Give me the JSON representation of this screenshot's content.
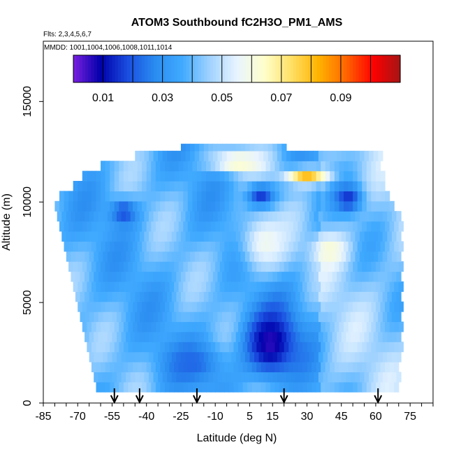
{
  "chart_data": {
    "type": "heatmap",
    "title": "ATOM3 Southbound fC2H3O_PM1_AMS",
    "subtitle_flights": "Flts: 2,3,4,5,6,7",
    "subtitle_dates": "MMDD: 1001,1004,1006,1008,1011,1014",
    "xlabel": "Latitude (deg N)",
    "ylabel": "Altitude (m)",
    "xlim": [
      -85,
      85
    ],
    "ylim": [
      0,
      18000
    ],
    "x_ticks": [
      -85,
      -70,
      -55,
      -40,
      -25,
      -10,
      5,
      15,
      30,
      45,
      60,
      75
    ],
    "x_tick_labels": [
      "-85",
      "-70",
      "-55",
      "-40",
      "-25",
      "-10",
      "5",
      "15",
      "30",
      "45",
      "60",
      "75"
    ],
    "y_ticks": [
      0,
      5000,
      10000,
      15000
    ],
    "y_tick_labels": [
      "0",
      "5000",
      "10000",
      "15000"
    ],
    "colorbar": {
      "range": [
        0.0,
        0.11
      ],
      "ticks": [
        0.01,
        0.03,
        0.05,
        0.07,
        0.09
      ],
      "tick_labels": [
        "0.01",
        "0.03",
        "0.05",
        "0.07",
        "0.09"
      ],
      "colors": [
        "#7a1fe0",
        "#0000aa",
        "#1a4ee0",
        "#2a8cf0",
        "#40aaff",
        "#9fd2ff",
        "#e8f4ff",
        "#ffffcc",
        "#ffe066",
        "#ffb300",
        "#ff6600",
        "#ff0000",
        "#a51515"
      ]
    },
    "profile_markers_lat": [
      -54,
      -43,
      -18,
      20,
      61
    ],
    "altitude_levels_m": [
      800,
      1300,
      1800,
      2300,
      2800,
      3300,
      3800,
      4300,
      4800,
      5300,
      5800,
      6300,
      6800,
      7300,
      7800,
      8300,
      8800,
      9300,
      9800,
      10300,
      10800,
      11300,
      11800,
      12300
    ],
    "coverage_lat_range_by_level": [
      [
        -62,
        70
      ],
      [
        -63,
        70
      ],
      [
        -64,
        70
      ],
      [
        -65,
        71
      ],
      [
        -66,
        71
      ],
      [
        -67,
        71
      ],
      [
        -68,
        71
      ],
      [
        -69,
        71
      ],
      [
        -70,
        71
      ],
      [
        -71,
        71
      ],
      [
        -72,
        71
      ],
      [
        -73,
        71
      ],
      [
        -74,
        71
      ],
      [
        -75,
        71
      ],
      [
        -76,
        71
      ],
      [
        -77,
        71
      ],
      [
        -78,
        71
      ],
      [
        -79,
        71
      ],
      [
        -80,
        67
      ],
      [
        -78,
        65
      ],
      [
        -72,
        64
      ],
      [
        -68,
        64
      ],
      [
        -60,
        62
      ],
      [
        -45,
        62
      ]
    ],
    "anomalies": [
      {
        "lat_center": 14,
        "alt_center": 3000,
        "lat_width": 28,
        "alt_width": 4200,
        "value": 0.006
      },
      {
        "lat_center": 10,
        "alt_center": 10300,
        "lat_width": 14,
        "alt_width": 1400,
        "value": 0.012
      },
      {
        "lat_center": 48,
        "alt_center": 10200,
        "lat_width": 14,
        "alt_width": 1600,
        "value": 0.015
      },
      {
        "lat_center": 30,
        "alt_center": 11300,
        "lat_width": 22,
        "alt_width": 900,
        "value": 0.08
      },
      {
        "lat_center": 0,
        "alt_center": 12000,
        "lat_width": 28,
        "alt_width": 1200,
        "value": 0.066
      },
      {
        "lat_center": 12,
        "alt_center": 8000,
        "lat_width": 26,
        "alt_width": 3500,
        "value": 0.058
      },
      {
        "lat_center": 40,
        "alt_center": 7600,
        "lat_width": 18,
        "alt_width": 1800,
        "value": 0.062
      },
      {
        "lat_center": -50,
        "alt_center": 9500,
        "lat_width": 14,
        "alt_width": 1500,
        "value": 0.018
      },
      {
        "lat_center": -20,
        "alt_center": 2000,
        "lat_width": 30,
        "alt_width": 2500,
        "value": 0.022
      }
    ]
  }
}
